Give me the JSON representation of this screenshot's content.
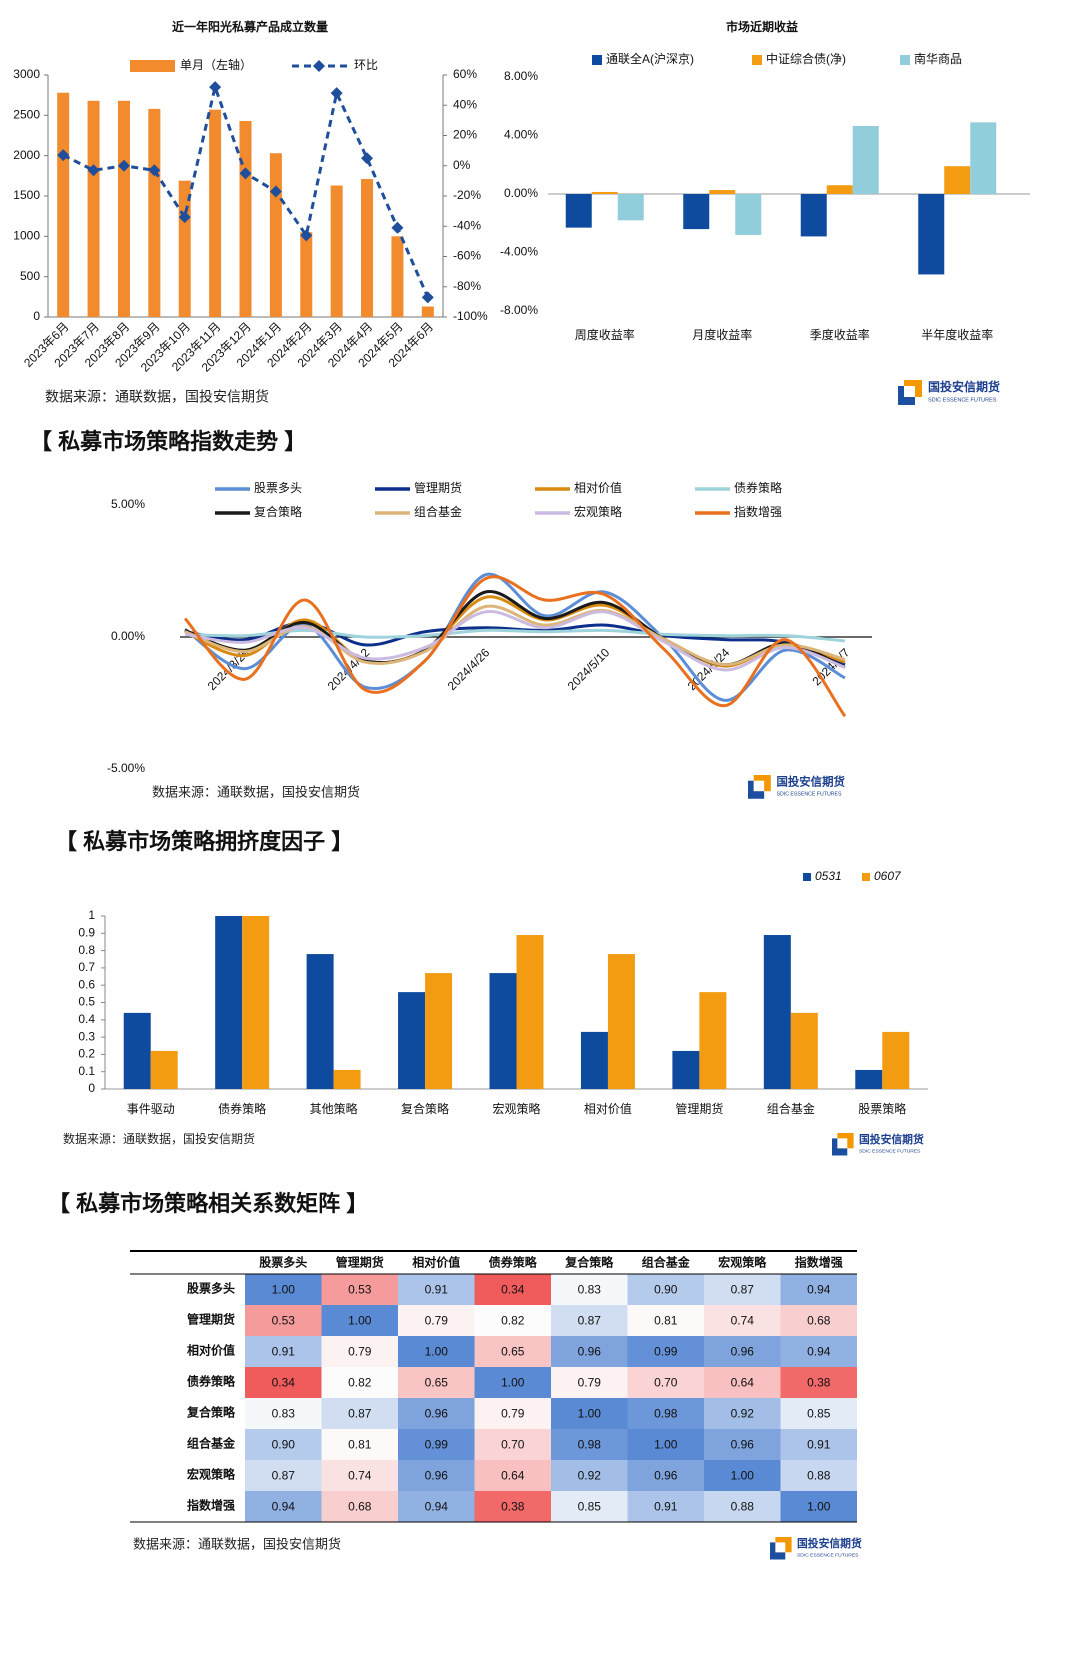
{
  "chart_data": [
    {
      "type": "combo",
      "title": "近一年阳光私募产品成立数量",
      "categories": [
        "2023年6月",
        "2023年7月",
        "2023年8月",
        "2023年9月",
        "2023年10月",
        "2023年11月",
        "2023年12月",
        "2024年1月",
        "2024年2月",
        "2024年3月",
        "2024年4月",
        "2024年5月",
        "2024年6月"
      ],
      "series": [
        {
          "name": "单月（左轴）",
          "type": "bar",
          "color": "#f28a2e",
          "values": [
            2780,
            2680,
            2680,
            2580,
            1690,
            2570,
            2430,
            2030,
            1050,
            1630,
            1710,
            1000,
            130
          ]
        },
        {
          "name": "环比",
          "type": "line",
          "axis": "y2",
          "color": "#1f4e9c",
          "dashed": true,
          "marker": "diamond",
          "values": [
            7,
            -3,
            0,
            -3,
            -34,
            52,
            -5,
            -17,
            -46,
            48,
            5,
            -41,
            -87
          ]
        }
      ],
      "ylim": [
        0,
        3000
      ],
      "yticks": [
        0,
        500,
        1000,
        1500,
        2000,
        2500,
        3000
      ],
      "y2lim": [
        -100,
        60
      ],
      "y2ticks": [
        {
          "value": -100,
          "label": "-100%"
        },
        {
          "value": -80,
          "label": "-80%"
        },
        {
          "value": -60,
          "label": "-60%"
        },
        {
          "value": -40,
          "label": "-40%"
        },
        {
          "value": -20,
          "label": "-20%"
        },
        {
          "value": 0,
          "label": "0%"
        },
        {
          "value": 20,
          "label": "20%"
        },
        {
          "value": 40,
          "label": "40%"
        },
        {
          "value": 60,
          "label": "60%"
        }
      ]
    },
    {
      "type": "bar",
      "title": "市场近期收益",
      "categories": [
        "周度收益率",
        "月度收益率",
        "季度收益率",
        "半年度收益率"
      ],
      "series": [
        {
          "name": "通联全A(沪深京)",
          "color": "#0e4a9e",
          "values": [
            -2.3,
            -2.4,
            -2.9,
            -5.5
          ]
        },
        {
          "name": "中证综合债(净)",
          "color": "#f39c12",
          "values": [
            0.14,
            0.27,
            0.6,
            1.9
          ]
        },
        {
          "name": "南华商品",
          "color": "#92cddc",
          "values": [
            -1.8,
            -2.8,
            4.65,
            4.9
          ]
        }
      ],
      "ylim": [
        -8,
        8
      ],
      "yticks": [
        {
          "value": -8,
          "label": "-8.00%"
        },
        {
          "value": -4,
          "label": "-4.00%"
        },
        {
          "value": 0,
          "label": "0.00%"
        },
        {
          "value": 4,
          "label": "4.00%"
        },
        {
          "value": 8,
          "label": "8.00%"
        }
      ]
    },
    {
      "type": "line",
      "smooth": true,
      "categories": [
        null,
        "2024/3/29",
        null,
        "2024/4/12",
        null,
        "2024/4/26",
        null,
        "2024/5/10",
        null,
        "2024/5/24",
        null,
        "2024/6/7"
      ],
      "series": [
        {
          "name": "股票多头",
          "color": "#5b8ed6",
          "values": [
            0.3,
            -1.2,
            0.45,
            -1.9,
            -0.9,
            2.35,
            0.8,
            1.7,
            -0.1,
            -2.4,
            -0.5,
            -1.55
          ]
        },
        {
          "name": "管理期货",
          "color": "#0b2f8a",
          "values": [
            0.2,
            -0.1,
            0.55,
            -0.3,
            0.2,
            0.35,
            0.25,
            0.45,
            0.05,
            -0.1,
            -0.2,
            -1.05
          ]
        },
        {
          "name": "相对价值",
          "color": "#d98a10",
          "values": [
            0.2,
            -0.7,
            0.65,
            -0.9,
            -0.5,
            1.5,
            0.65,
            1.2,
            -0.1,
            -1.1,
            -0.3,
            -0.95
          ]
        },
        {
          "name": "债券策略",
          "color": "#9ed3dc",
          "values": [
            0.1,
            0.05,
            0.25,
            0,
            0.05,
            0.25,
            0.2,
            0.25,
            0.1,
            0.05,
            0.05,
            -0.15
          ]
        },
        {
          "name": "复合策略",
          "color": "#1a1a1a",
          "values": [
            0.25,
            -0.5,
            0.55,
            -0.9,
            -0.5,
            1.7,
            0.7,
            1.3,
            -0.1,
            -1.05,
            -0.25,
            -1.15
          ]
        },
        {
          "name": "组合基金",
          "color": "#dcb57a",
          "values": [
            0.2,
            -0.55,
            0.4,
            -0.95,
            -0.55,
            1.15,
            0.45,
            1.0,
            -0.1,
            -1.05,
            -0.3,
            -0.85
          ]
        },
        {
          "name": "宏观策略",
          "color": "#cbbbe0",
          "values": [
            0.1,
            -0.2,
            0.35,
            -0.8,
            -0.4,
            0.95,
            0.35,
            0.95,
            -0.2,
            -1.25,
            -0.4,
            -1.15
          ]
        },
        {
          "name": "指数增强",
          "color": "#e8701f",
          "values": [
            0.7,
            -1.6,
            1.4,
            -2.0,
            -0.9,
            2.2,
            1.4,
            1.6,
            -0.5,
            -2.6,
            -0.1,
            -3.0
          ]
        }
      ],
      "ylim": [
        -5,
        5
      ],
      "yticks": [
        {
          "value": -5,
          "label": "-5.00%"
        },
        {
          "value": 0,
          "label": "0.00%"
        },
        {
          "value": 5,
          "label": "5.00%"
        }
      ]
    },
    {
      "type": "bar",
      "categories": [
        "事件驱动",
        "债券策略",
        "其他策略",
        "复合策略",
        "宏观策略",
        "相对价值",
        "管理期货",
        "组合基金",
        "股票策略"
      ],
      "series": [
        {
          "name": "0531",
          "color": "#0e4a9e",
          "values": [
            0.44,
            1,
            0.78,
            0.56,
            0.67,
            0.33,
            0.22,
            0.89,
            0.11
          ]
        },
        {
          "name": "0607",
          "color": "#f39c12",
          "values": [
            0.22,
            1,
            0.11,
            0.67,
            0.89,
            0.78,
            0.56,
            0.44,
            0.33
          ]
        }
      ],
      "ylim": [
        0,
        1
      ],
      "yticks": [
        0,
        0.1,
        0.2,
        0.3,
        0.4,
        0.5,
        0.6,
        0.7,
        0.8,
        0.9,
        1
      ]
    }
  ],
  "sections": [
    "【 私募市场策略指数走势 】",
    "【 私募市场策略拥挤度因子 】",
    "【 私募市场策略相关系数矩阵 】"
  ],
  "sources": [
    "数据来源：通联数据，国投安信期货",
    "数据来源：通联数据，国投安信期货",
    "数据来源：通联数据，国投安信期货",
    "数据来源：通联数据，国投安信期货"
  ],
  "logo": {
    "name": "国投安信期货",
    "sub": "SDIC ESSENCE FUTURES"
  },
  "table": {
    "header": [
      "股票多头",
      "管理期货",
      "相对价值",
      "债券策略",
      "复合策略",
      "组合基金",
      "宏观策略",
      "指数增强"
    ],
    "rows": [
      [
        "股票多头",
        "1.00",
        "0.53",
        "0.91",
        "0.34",
        "0.83",
        "0.90",
        "0.87",
        "0.94"
      ],
      [
        "管理期货",
        "0.53",
        "1.00",
        "0.79",
        "0.82",
        "0.87",
        "0.81",
        "0.74",
        "0.68"
      ],
      [
        "相对价值",
        "0.91",
        "0.79",
        "1.00",
        "0.65",
        "0.96",
        "0.99",
        "0.96",
        "0.94"
      ],
      [
        "债券策略",
        "0.34",
        "0.82",
        "0.65",
        "1.00",
        "0.79",
        "0.70",
        "0.64",
        "0.38"
      ],
      [
        "复合策略",
        "0.83",
        "0.87",
        "0.96",
        "0.79",
        "1.00",
        "0.98",
        "0.92",
        "0.85"
      ],
      [
        "组合基金",
        "0.90",
        "0.81",
        "0.99",
        "0.70",
        "0.98",
        "1.00",
        "0.96",
        "0.91"
      ],
      [
        "宏观策略",
        "0.87",
        "0.74",
        "0.96",
        "0.64",
        "0.92",
        "0.96",
        "1.00",
        "0.88"
      ],
      [
        "指数增强",
        "0.94",
        "0.68",
        "0.94",
        "0.38",
        "0.85",
        "0.91",
        "0.88",
        "1.00"
      ]
    ]
  }
}
